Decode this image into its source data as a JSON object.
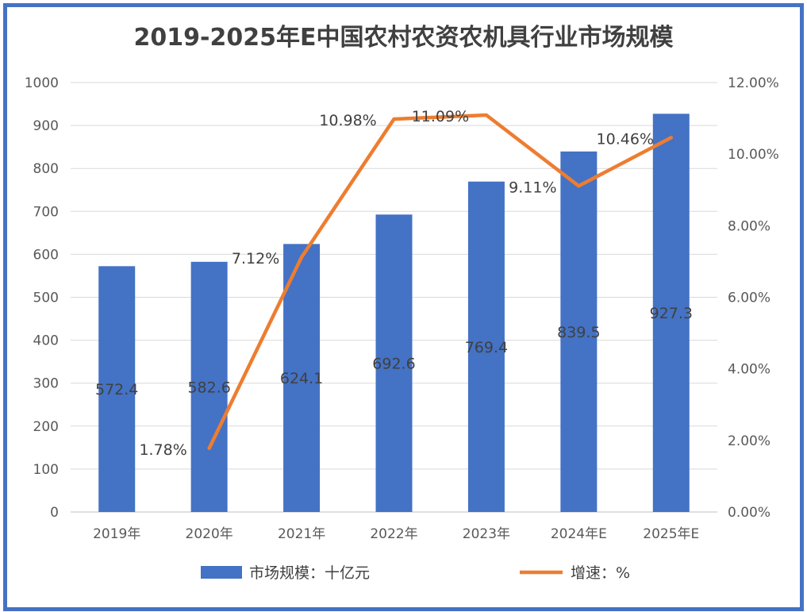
{
  "chart_data": {
    "type": "bar+line",
    "title": "2019-2025年E中国农村农资农机具行业市场规模",
    "categories": [
      "2019年",
      "2020年",
      "2021年",
      "2022年",
      "2023年",
      "2024年E",
      "2025年E"
    ],
    "series": [
      {
        "name": "市场规模：十亿元",
        "type": "bar",
        "axis": "left",
        "color": "#4472C4",
        "values": [
          572.4,
          582.6,
          624.1,
          692.6,
          769.4,
          839.5,
          927.3
        ],
        "labels": [
          "572.4",
          "582.6",
          "624.1",
          "692.6",
          "769.4",
          "839.5",
          "927.3"
        ]
      },
      {
        "name": "增速：%",
        "type": "line",
        "axis": "right",
        "color": "#ED7D31",
        "values": [
          null,
          1.78,
          7.12,
          10.98,
          11.09,
          9.11,
          10.46
        ],
        "labels": [
          "",
          "1.78%",
          "7.12%",
          "10.98%",
          "11.09%",
          "9.11%",
          "10.46%"
        ]
      }
    ],
    "y_left": {
      "min": 0,
      "max": 1000,
      "step": 100,
      "ticks": [
        "0",
        "100",
        "200",
        "300",
        "400",
        "500",
        "600",
        "700",
        "800",
        "900",
        "1000"
      ]
    },
    "y_right": {
      "min": 0,
      "max": 12,
      "step": 2,
      "ticks": [
        "0.00%",
        "2.00%",
        "4.00%",
        "6.00%",
        "8.00%",
        "10.00%",
        "12.00%"
      ]
    },
    "grid": true,
    "legend": "bottom"
  }
}
